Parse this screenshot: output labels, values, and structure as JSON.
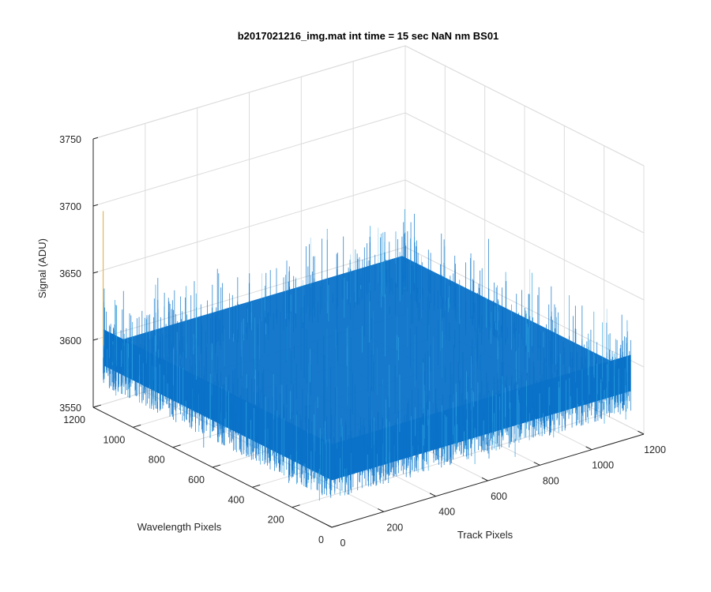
{
  "chart_data": {
    "type": "surface",
    "title": "b2017021216_img.mat int time = 15 sec  NaN nm BS01",
    "xlabel": "Track Pixels",
    "ylabel": "Wavelength Pixels",
    "zlabel": "Signal (ADU)",
    "xlim": [
      0,
      1200
    ],
    "ylim": [
      0,
      1200
    ],
    "zlim": [
      3550,
      3750
    ],
    "x_ticks": [
      "0",
      "200",
      "400",
      "600",
      "800",
      "1000",
      "1200"
    ],
    "y_ticks": [
      "0",
      "200",
      "400",
      "600",
      "800",
      "1000",
      "1200"
    ],
    "z_ticks": [
      "3550",
      "3600",
      "3650",
      "3700",
      "3750"
    ],
    "surface_extent": {
      "x": [
        0,
        1150
      ],
      "y": [
        0,
        1150
      ]
    },
    "surface_mean": 3600,
    "surface_noise_range": [
      3575,
      3625
    ],
    "spike": {
      "x": 0,
      "y": 1150,
      "z": 3700
    },
    "grid": true,
    "colormap": "parula",
    "surface_color": "#0a72c8",
    "highlight_color": "#2ba0e0",
    "spike_color": "#e0b860"
  }
}
